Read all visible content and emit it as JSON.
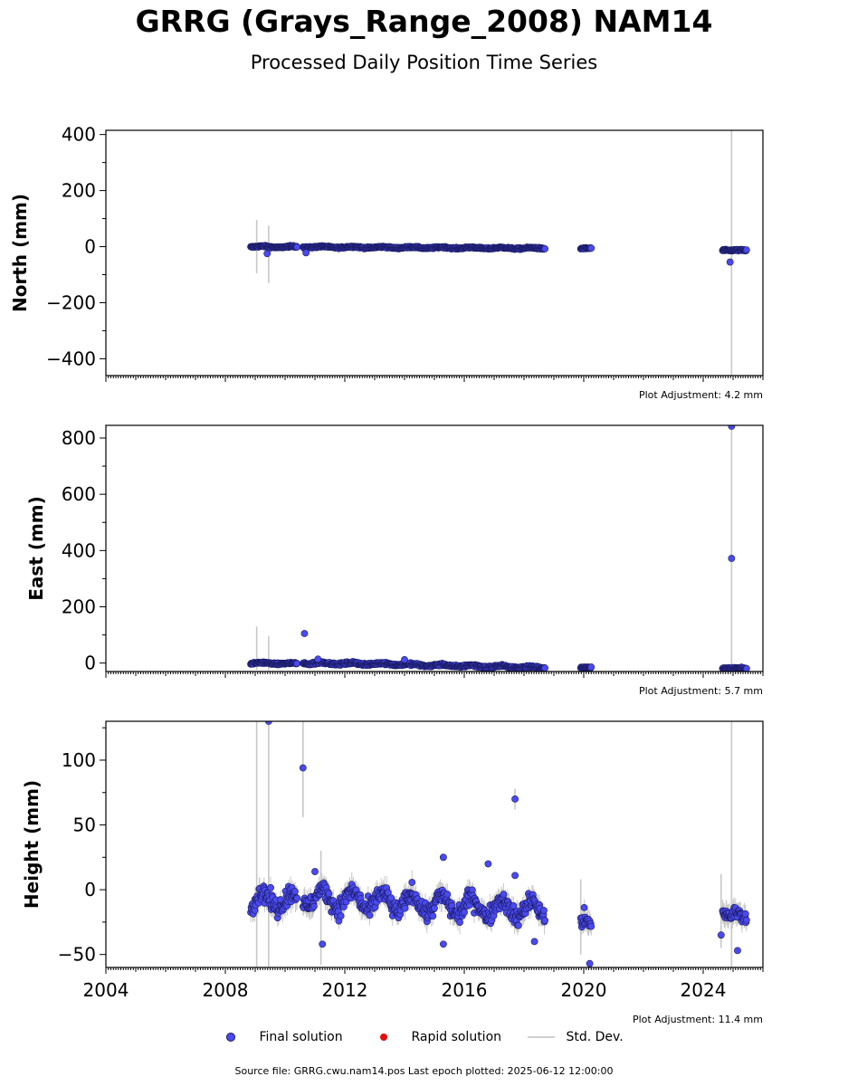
{
  "header": {
    "title": "GRRG (Grays_Range_2008) NAM14",
    "subtitle": "Processed Daily Position Time Series"
  },
  "legend": {
    "final_label": "Final solution",
    "rapid_label": "Rapid solution",
    "stddev_label": "Std. Dev."
  },
  "footer": {
    "source_text": "Source file: GRRG.cwu.nam14.pos  Last epoch plotted: 2025-06-12 12:00:00"
  },
  "colors": {
    "final_fill": "#4a4af0",
    "final_edge": "#1a1a60",
    "rapid": "#e01010",
    "stddev": "#c8c8c8"
  },
  "chart_data": [
    {
      "type": "scatter",
      "ylabel": "North (mm)",
      "adjustment": "Plot Adjustment: 4.2 mm",
      "xlim": [
        2004,
        2026
      ],
      "ylim": [
        -460,
        415
      ],
      "yticks": [
        -400,
        -200,
        0,
        200,
        400
      ],
      "ytick_labels": [
        "−400",
        "−200",
        "0",
        "200",
        "400"
      ],
      "segments": [
        {
          "x0": 2008.85,
          "x1": 2009.75,
          "y0": 0,
          "y1": -1,
          "amp": 2,
          "noise": 2
        },
        {
          "x0": 2009.75,
          "x1": 2010.4,
          "y0": -1,
          "y1": -1,
          "amp": 2,
          "noise": 2
        },
        {
          "x0": 2010.6,
          "x1": 2018.7,
          "y0": -1,
          "y1": -6,
          "amp": 2,
          "noise": 2
        },
        {
          "x0": 2019.9,
          "x1": 2020.25,
          "y0": -6,
          "y1": -7,
          "amp": 1,
          "noise": 2
        },
        {
          "x0": 2024.65,
          "x1": 2025.45,
          "y0": -12,
          "y1": -14,
          "amp": 1,
          "noise": 2
        }
      ],
      "outliers": [
        {
          "x": 2009.4,
          "y": -25
        },
        {
          "x": 2010.7,
          "y": -22
        },
        {
          "x": 2024.9,
          "y": -55
        }
      ],
      "errorbars": [
        {
          "x": 2009.05,
          "lo": -95,
          "hi": 95
        },
        {
          "x": 2009.45,
          "lo": -130,
          "hi": 75
        },
        {
          "x": 2024.95,
          "lo": -460,
          "hi": 415
        }
      ]
    },
    {
      "type": "scatter",
      "ylabel": "East (mm)",
      "adjustment": "Plot Adjustment: 5.7 mm",
      "xlim": [
        2004,
        2026
      ],
      "ylim": [
        -30,
        845
      ],
      "yticks": [
        0,
        200,
        400,
        600,
        800
      ],
      "ytick_labels": [
        "0",
        "200",
        "400",
        "600",
        "800"
      ],
      "segments": [
        {
          "x0": 2008.85,
          "x1": 2009.75,
          "y0": 0,
          "y1": -1,
          "amp": 2,
          "noise": 2
        },
        {
          "x0": 2009.75,
          "x1": 2010.4,
          "y0": -1,
          "y1": -2,
          "amp": 2,
          "noise": 2
        },
        {
          "x0": 2010.6,
          "x1": 2014.1,
          "y0": 0,
          "y1": -4,
          "amp": 3,
          "noise": 3
        },
        {
          "x0": 2014.1,
          "x1": 2018.7,
          "y0": -6,
          "y1": -16,
          "amp": 3,
          "noise": 3
        },
        {
          "x0": 2019.9,
          "x1": 2020.25,
          "y0": -16,
          "y1": -16,
          "amp": 1,
          "noise": 2
        },
        {
          "x0": 2024.65,
          "x1": 2025.45,
          "y0": -18,
          "y1": -20,
          "amp": 1,
          "noise": 2
        }
      ],
      "outliers": [
        {
          "x": 2010.65,
          "y": 105
        },
        {
          "x": 2011.1,
          "y": 14
        },
        {
          "x": 2014.0,
          "y": 12
        },
        {
          "x": 2024.95,
          "y": 842
        },
        {
          "x": 2024.95,
          "y": 372
        }
      ],
      "errorbars": [
        {
          "x": 2009.05,
          "lo": -25,
          "hi": 130
        },
        {
          "x": 2009.45,
          "lo": -25,
          "hi": 95
        },
        {
          "x": 2024.95,
          "lo": -30,
          "hi": 845
        }
      ]
    },
    {
      "type": "scatter",
      "ylabel": "Height (mm)",
      "adjustment": "Plot Adjustment: 11.4 mm",
      "xlim": [
        2004,
        2026
      ],
      "ylim": [
        -60,
        130
      ],
      "yticks": [
        -50,
        0,
        50,
        100
      ],
      "ytick_labels": [
        "−50",
        "0",
        "50",
        "100"
      ],
      "xticks": [
        2004,
        2008,
        2012,
        2016,
        2020,
        2024
      ],
      "xtick_labels": [
        "2004",
        "2008",
        "2012",
        "2016",
        "2020",
        "2024"
      ],
      "segments": [
        {
          "x0": 2008.85,
          "x1": 2010.4,
          "y0": -8,
          "y1": -8,
          "amp": 6,
          "noise": 5
        },
        {
          "x0": 2010.6,
          "x1": 2018.7,
          "y0": -6,
          "y1": -16,
          "amp": 7,
          "noise": 5
        },
        {
          "x0": 2019.9,
          "x1": 2020.25,
          "y0": -20,
          "y1": -32,
          "amp": 3,
          "noise": 5
        },
        {
          "x0": 2024.65,
          "x1": 2025.45,
          "y0": -15,
          "y1": -24,
          "amp": 3,
          "noise": 4
        }
      ],
      "outliers": [
        {
          "x": 2009.45,
          "y": 130
        },
        {
          "x": 2010.6,
          "y": 94
        },
        {
          "x": 2011.0,
          "y": 14
        },
        {
          "x": 2011.25,
          "y": -42
        },
        {
          "x": 2015.3,
          "y": 25
        },
        {
          "x": 2015.3,
          "y": -42
        },
        {
          "x": 2016.8,
          "y": 20
        },
        {
          "x": 2017.7,
          "y": 70
        },
        {
          "x": 2017.7,
          "y": 11
        },
        {
          "x": 2018.35,
          "y": -40
        },
        {
          "x": 2020.2,
          "y": -57
        },
        {
          "x": 2024.6,
          "y": -35
        },
        {
          "x": 2025.15,
          "y": -47
        }
      ],
      "errorbars": [
        {
          "x": 2009.05,
          "lo": -60,
          "hi": 130
        },
        {
          "x": 2009.45,
          "lo": -60,
          "hi": 130
        },
        {
          "x": 2010.6,
          "lo": 56,
          "hi": 130
        },
        {
          "x": 2011.2,
          "lo": -58,
          "hi": 30
        },
        {
          "x": 2019.9,
          "lo": -50,
          "hi": 8
        },
        {
          "x": 2024.6,
          "lo": -45,
          "hi": 12
        },
        {
          "x": 2024.95,
          "lo": -60,
          "hi": 130
        },
        {
          "x": 2017.7,
          "lo": 62,
          "hi": 78
        }
      ]
    }
  ]
}
